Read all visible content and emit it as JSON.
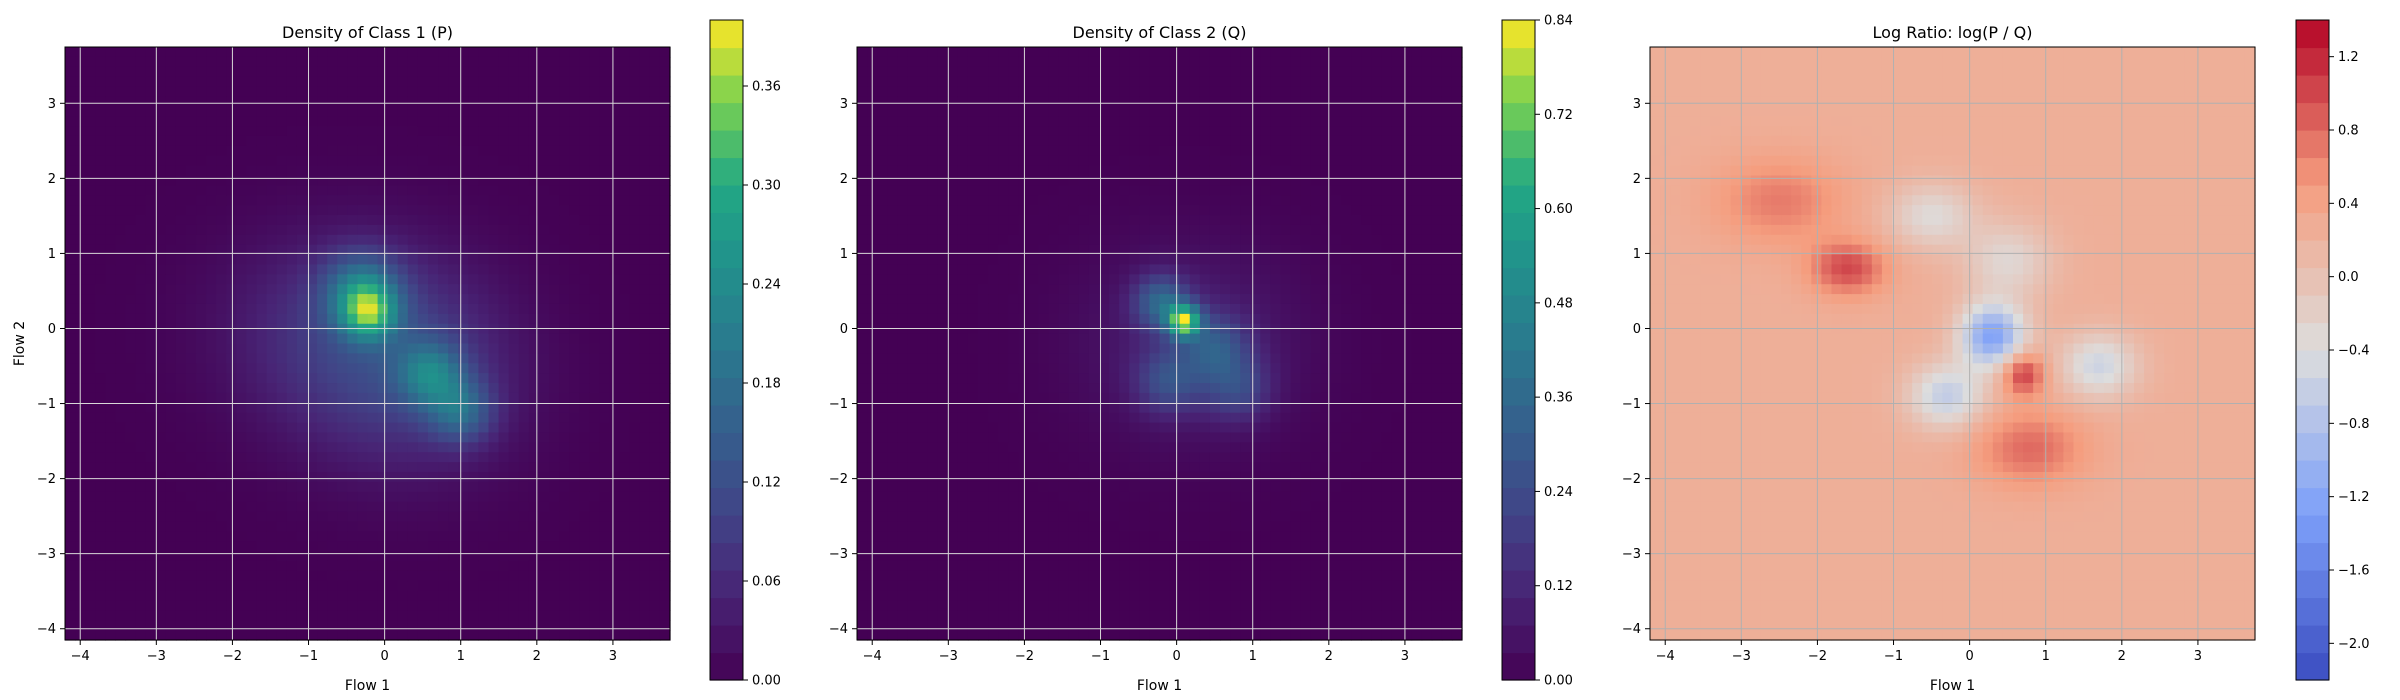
{
  "chart_data": [
    {
      "type": "heatmap",
      "title": "Density of Class 1 (P)",
      "xlabel": "Flow 1",
      "ylabel": "Flow 2",
      "xlim": [
        -4.2,
        3.75
      ],
      "ylim": [
        -4.15,
        3.75
      ],
      "xticks": [
        "−4",
        "−3",
        "−2",
        "−1",
        "0",
        "1",
        "2",
        "3"
      ],
      "yticks": [
        "−4",
        "−3",
        "−2",
        "−1",
        "0",
        "1",
        "2",
        "3"
      ],
      "grid": true,
      "colormap": "viridis",
      "colorbar": {
        "range": [
          0,
          0.4
        ],
        "ticks": [
          "0.00",
          "0.06",
          "0.12",
          "0.18",
          "0.24",
          "0.30",
          "0.36"
        ]
      },
      "blobs": [
        {
          "x": -0.5,
          "y": 0.0,
          "sx": 1.1,
          "sy": 0.9,
          "v": 0.07
        },
        {
          "x": 0.3,
          "y": -0.7,
          "sx": 1.0,
          "sy": 0.9,
          "v": 0.07
        },
        {
          "x": -0.3,
          "y": 0.5,
          "sx": 0.35,
          "sy": 0.35,
          "v": 0.16
        },
        {
          "x": 0.6,
          "y": -0.6,
          "sx": 0.3,
          "sy": 0.3,
          "v": 0.14
        },
        {
          "x": 1.0,
          "y": -1.1,
          "sx": 0.3,
          "sy": 0.3,
          "v": 0.13
        },
        {
          "x": -0.2,
          "y": 0.2,
          "sx": 0.25,
          "sy": 0.25,
          "v": 0.18
        }
      ]
    },
    {
      "type": "heatmap",
      "title": "Density of Class 2 (Q)",
      "xlabel": "Flow 1",
      "ylabel": "",
      "xlim": [
        -4.2,
        3.75
      ],
      "ylim": [
        -4.15,
        3.75
      ],
      "xticks": [
        "−4",
        "−3",
        "−2",
        "−1",
        "0",
        "1",
        "2",
        "3"
      ],
      "yticks": [
        "−4",
        "−3",
        "−2",
        "−1",
        "0",
        "1",
        "2",
        "3"
      ],
      "grid": true,
      "colormap": "viridis",
      "colorbar": {
        "range": [
          0,
          0.84
        ],
        "ticks": [
          "0.00",
          "0.12",
          "0.24",
          "0.36",
          "0.48",
          "0.60",
          "0.72",
          "0.84"
        ]
      },
      "blobs": [
        {
          "x": 0.2,
          "y": -0.2,
          "sx": 1.0,
          "sy": 0.9,
          "v": 0.1
        },
        {
          "x": 0.1,
          "y": 0.1,
          "sx": 0.15,
          "sy": 0.15,
          "v": 0.62
        },
        {
          "x": -0.2,
          "y": 0.35,
          "sx": 0.25,
          "sy": 0.25,
          "v": 0.3
        },
        {
          "x": 0.5,
          "y": -0.25,
          "sx": 0.3,
          "sy": 0.3,
          "v": 0.22
        },
        {
          "x": -0.1,
          "y": -0.7,
          "sx": 0.3,
          "sy": 0.3,
          "v": 0.2
        },
        {
          "x": 0.8,
          "y": -0.8,
          "sx": 0.3,
          "sy": 0.3,
          "v": 0.18
        }
      ]
    },
    {
      "type": "heatmap",
      "title": "Log Ratio: log(P / Q)",
      "xlabel": "Flow 1",
      "ylabel": "",
      "xlim": [
        -4.2,
        3.75
      ],
      "ylim": [
        -4.15,
        3.75
      ],
      "xticks": [
        "−4",
        "−3",
        "−2",
        "−1",
        "0",
        "1",
        "2",
        "3"
      ],
      "yticks": [
        "−4",
        "−3",
        "−2",
        "−1",
        "0",
        "1",
        "2",
        "3"
      ],
      "grid": true,
      "colormap": "coolwarm",
      "colorbar": {
        "range": [
          -2.2,
          1.4
        ],
        "ticks": [
          "−2.0",
          "−1.6",
          "−1.2",
          "−0.8",
          "−0.4",
          "0.0",
          "0.4",
          "0.8",
          "1.2"
        ]
      },
      "base_value": 0.25,
      "blobs": [
        {
          "x": -1.6,
          "y": 0.8,
          "sx": 0.35,
          "sy": 0.25,
          "v": 0.75
        },
        {
          "x": 0.8,
          "y": -1.6,
          "sx": 0.5,
          "sy": 0.35,
          "v": 0.55
        },
        {
          "x": 0.3,
          "y": -0.1,
          "sx": 0.3,
          "sy": 0.3,
          "v": -1.5
        },
        {
          "x": -0.3,
          "y": -0.9,
          "sx": 0.35,
          "sy": 0.3,
          "v": -0.9
        },
        {
          "x": 1.7,
          "y": -0.5,
          "sx": 0.35,
          "sy": 0.3,
          "v": -0.8
        },
        {
          "x": -0.5,
          "y": 1.5,
          "sx": 0.4,
          "sy": 0.3,
          "v": -0.6
        },
        {
          "x": 0.7,
          "y": -0.6,
          "sx": 0.2,
          "sy": 0.2,
          "v": 0.9
        },
        {
          "x": -2.5,
          "y": 1.7,
          "sx": 0.6,
          "sy": 0.4,
          "v": 0.45
        },
        {
          "x": 0.5,
          "y": 0.9,
          "sx": 0.4,
          "sy": 0.35,
          "v": -0.55
        }
      ]
    }
  ]
}
